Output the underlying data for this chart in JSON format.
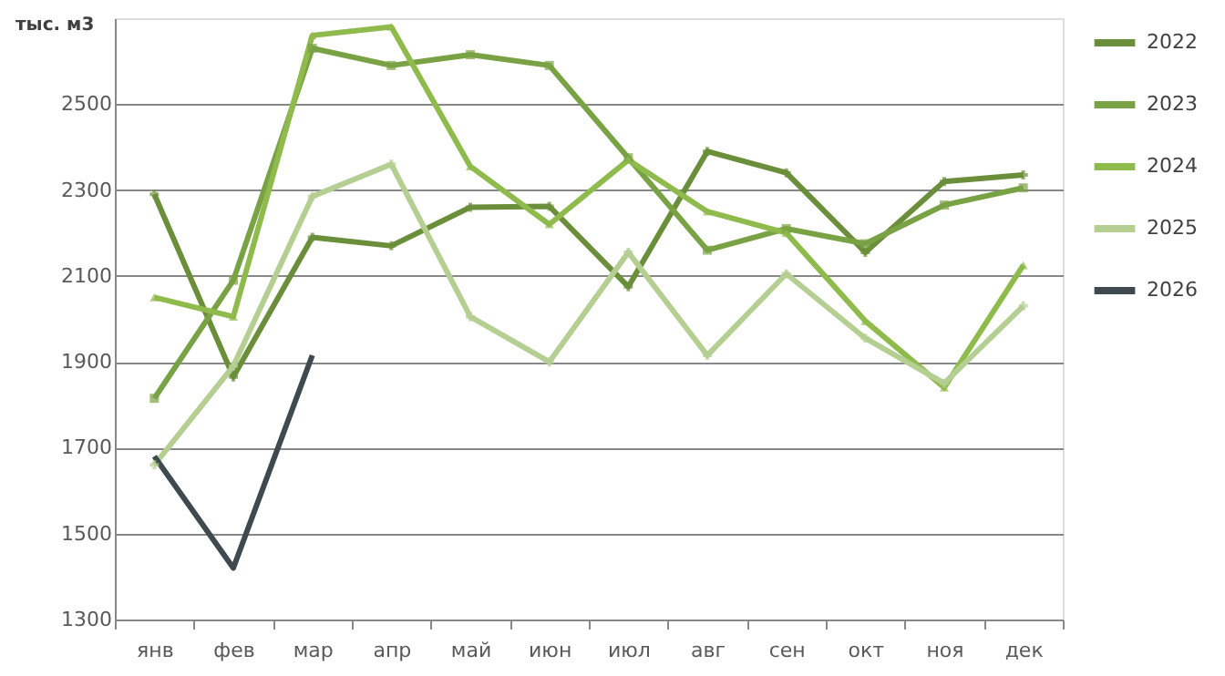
{
  "chart_data": {
    "type": "line",
    "ylabel": "тыс. м3",
    "categories": [
      "янв",
      "фев",
      "мар",
      "апр",
      "май",
      "июн",
      "июл",
      "авг",
      "сен",
      "окт",
      "ноя",
      "дек"
    ],
    "series": [
      {
        "name": "2022",
        "color": "#6b8e3a",
        "marker": "cross",
        "values": [
          2290,
          1865,
          2190,
          2170,
          2260,
          2262,
          2075,
          2390,
          2340,
          2155,
          2320,
          2335
        ]
      },
      {
        "name": "2023",
        "color": "#79a244",
        "marker": "square",
        "values": [
          1815,
          2090,
          2630,
          2590,
          2615,
          2590,
          2375,
          2160,
          2210,
          2175,
          2265,
          2305
        ]
      },
      {
        "name": "2024",
        "color": "#8fba4c",
        "marker": "triangle",
        "values": [
          2050,
          2005,
          2660,
          2680,
          2355,
          2220,
          2370,
          2250,
          2200,
          1995,
          1840,
          2125
        ]
      },
      {
        "name": "2025",
        "color": "#b5cf93",
        "marker": "cross",
        "values": [
          1660,
          1890,
          2285,
          2360,
          2005,
          1900,
          2155,
          1915,
          2105,
          1955,
          1850,
          2030
        ]
      },
      {
        "name": "2026",
        "color": "#3f4a50",
        "marker": "none",
        "values": [
          1680,
          1420,
          1915,
          null,
          null,
          null,
          null,
          null,
          null,
          null,
          null,
          null
        ]
      }
    ],
    "ylim": [
      1300,
      2700
    ],
    "yticks": [
      1300,
      1500,
      1700,
      1900,
      2100,
      2300,
      2500
    ],
    "grid": "y",
    "legend": "right",
    "line_style": "solid"
  }
}
